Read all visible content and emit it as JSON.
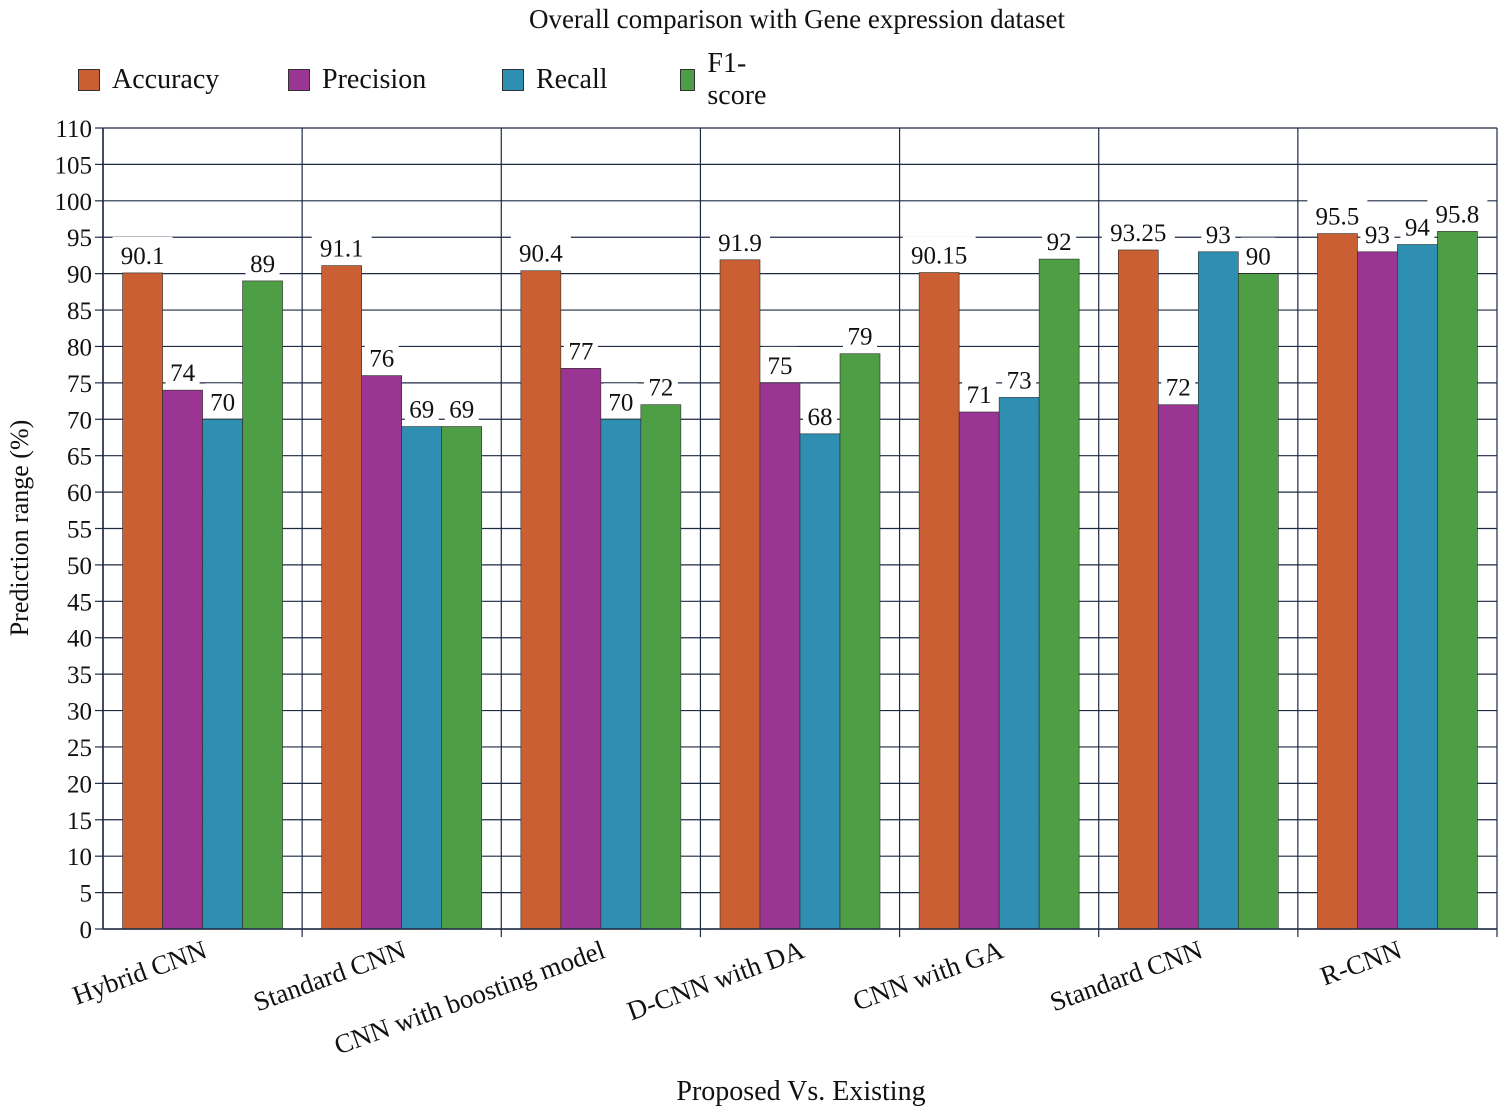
{
  "chart_data": {
    "type": "bar",
    "title": "Overall comparison with Gene expression dataset",
    "xlabel": "Proposed Vs. Existing",
    "ylabel": "Prediction range (%)",
    "ylim": [
      0,
      110
    ],
    "ytick_step": 5,
    "grid": true,
    "legend_position": "top-left",
    "categories": [
      "Hybrid CNN",
      "Standard CNN",
      "CNN with boosting model",
      "D-CNN with DA",
      "CNN with GA",
      "Standard CNN",
      "R-CNN"
    ],
    "series": [
      {
        "name": "Accuracy",
        "color": "#C95F33",
        "values": [
          90.1,
          91.1,
          90.4,
          91.9,
          90.15,
          93.25,
          95.5
        ],
        "labels": [
          "90.1",
          "91.1",
          "90.4",
          "91.9",
          "90.15",
          "93.25",
          "95.5"
        ]
      },
      {
        "name": "Precision",
        "color": "#9B3594",
        "values": [
          74,
          76,
          77,
          75,
          71,
          72,
          93
        ],
        "labels": [
          "74",
          "76",
          "77",
          "75",
          "71",
          "72",
          "93"
        ]
      },
      {
        "name": "Recall",
        "color": "#2E8FB3",
        "values": [
          70,
          69,
          70,
          68,
          73,
          93,
          94
        ],
        "labels": [
          "70",
          "69",
          "70",
          "68",
          "73",
          "93",
          "94"
        ]
      },
      {
        "name": "F1-score",
        "color": "#4E9E45",
        "values": [
          89,
          69,
          72,
          79,
          92,
          90,
          95.8
        ],
        "labels": [
          "89",
          "69",
          "72",
          "79",
          "92",
          "90",
          "95.8"
        ]
      }
    ]
  }
}
